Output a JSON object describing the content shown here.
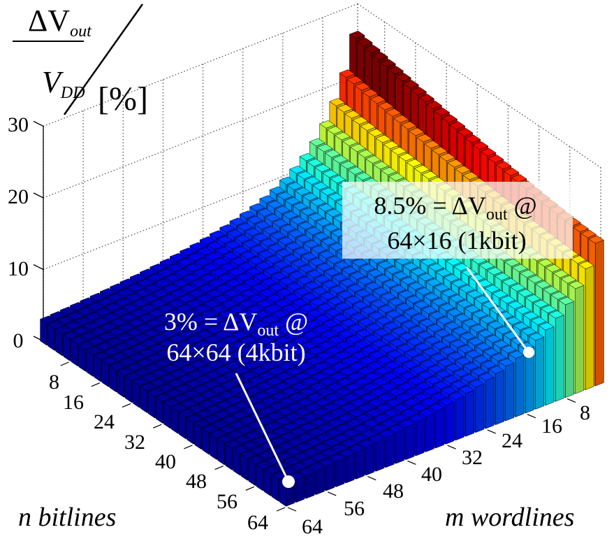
{
  "chart_data": {
    "type": "bar3d",
    "title": "",
    "zlabel": {
      "numerator_symbol": "ΔV",
      "numerator_sub": "out",
      "denominator_symbol": "V",
      "denominator_sub": "DD",
      "unit": "[%]"
    },
    "xlabel": "n bitlines",
    "ylabel": "m wordlines",
    "x_ticks": [
      "8",
      "16",
      "24",
      "32",
      "40",
      "48",
      "56",
      "64"
    ],
    "y_ticks": [
      "64",
      "56",
      "48",
      "40",
      "32",
      "24",
      "16",
      "8"
    ],
    "z_ticks": [
      "0",
      "10",
      "20",
      "30"
    ],
    "zlim": [
      0,
      30
    ],
    "x_range": [
      1,
      64
    ],
    "y_range": [
      1,
      64
    ],
    "grid": true,
    "colormap": "jet",
    "model": {
      "description_of_values": "dV_out/VDD [%] vs n bitlines and m wordlines",
      "peak_value_at_n1_m1": 26,
      "value_at_n64_m1": 20,
      "value_at_n64_m16": 8.5,
      "value_at_n64_m64": 3
    },
    "annotations": [
      {
        "line1_prefix": "8.5% = ΔV",
        "line1_sub": "out",
        "line1_suffix": " @",
        "line2": "64×16 (1kbit)",
        "n": 64,
        "m": 16,
        "value": 8.5
      },
      {
        "line1_prefix": "3% = ΔV",
        "line1_sub": "out",
        "line1_suffix": " @",
        "line2": "64×64 (4kbit)",
        "n": 64,
        "m": 64,
        "value": 3
      }
    ]
  }
}
